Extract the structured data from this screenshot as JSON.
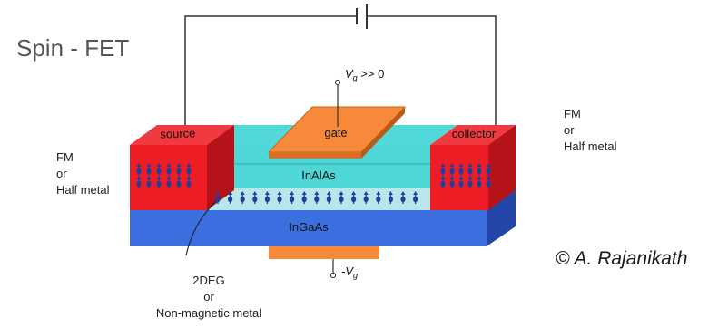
{
  "title": "Spin - FET",
  "copyright": "© A. Rajanikath",
  "labels": {
    "source": "source",
    "gate": "gate",
    "collector": "collector",
    "inalas": "InAlAs",
    "ingaas": "InGaAs",
    "vg_top_v": "V",
    "vg_top_sub": "g",
    "vg_top_rest": " >> 0",
    "vg_bottom_minus": "-V",
    "vg_bottom_sub": "g"
  },
  "left_label": [
    "FM",
    "or",
    "Half metal"
  ],
  "right_label": [
    "FM",
    "or",
    "Half metal"
  ],
  "bottom_label": [
    "2DEG",
    "or",
    "Non-magnetic metal"
  ],
  "colors": {
    "red": "#ee1c24",
    "red_dark": "#b5121a",
    "cyan": "#4fd6d6",
    "cyan_dark": "#2aa9a9",
    "blue": "#3b6fe0",
    "blue_dark": "#2347a8",
    "orange": "#f7893a",
    "light_cyan": "#b9e6ea",
    "spin": "#1f3f9e"
  },
  "icons": [
    "battery-icon",
    "terminal-icon",
    "spin-arrow-icon"
  ]
}
